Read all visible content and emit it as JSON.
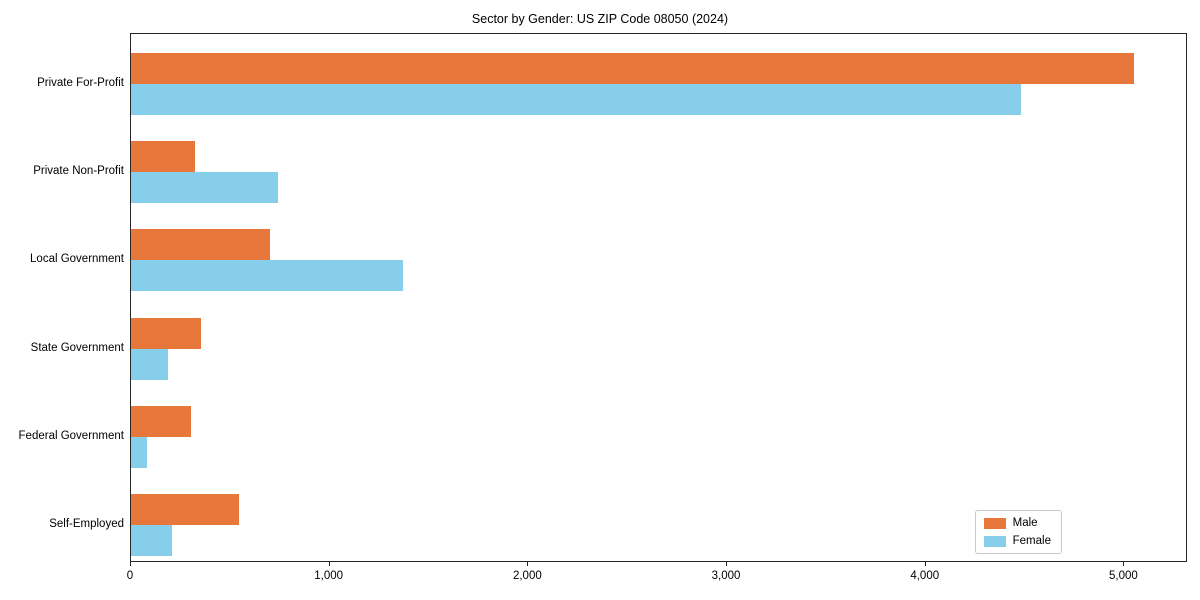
{
  "title": "Sector by Gender: US ZIP Code 08050 (2024)",
  "chart_data": {
    "type": "bar",
    "orientation": "horizontal",
    "title": "Sector by Gender: US ZIP Code 08050 (2024)",
    "xlabel": "",
    "ylabel": "",
    "categories": [
      "Private For-Profit",
      "Private Non-Profit",
      "Local Government",
      "State Government",
      "Federal Government",
      "Self-Employed"
    ],
    "series": [
      {
        "name": "Male",
        "color": "#e8773b",
        "values": [
          5050,
          320,
          700,
          350,
          300,
          545
        ]
      },
      {
        "name": "Female",
        "color": "#87ceeb",
        "values": [
          4480,
          740,
          1370,
          185,
          80,
          205
        ]
      }
    ],
    "xlim": [
      0,
      5320
    ],
    "xticks": [
      0,
      1000,
      2000,
      3000,
      4000,
      5000
    ],
    "xtick_labels": [
      "0",
      "1,000",
      "2,000",
      "3,000",
      "4,000",
      "5,000"
    ],
    "grid": false,
    "legend_position": "lower right"
  },
  "colors": {
    "background": "#ffffff",
    "axis": "#262626",
    "male": "#e8773b",
    "female": "#87ceeb"
  }
}
